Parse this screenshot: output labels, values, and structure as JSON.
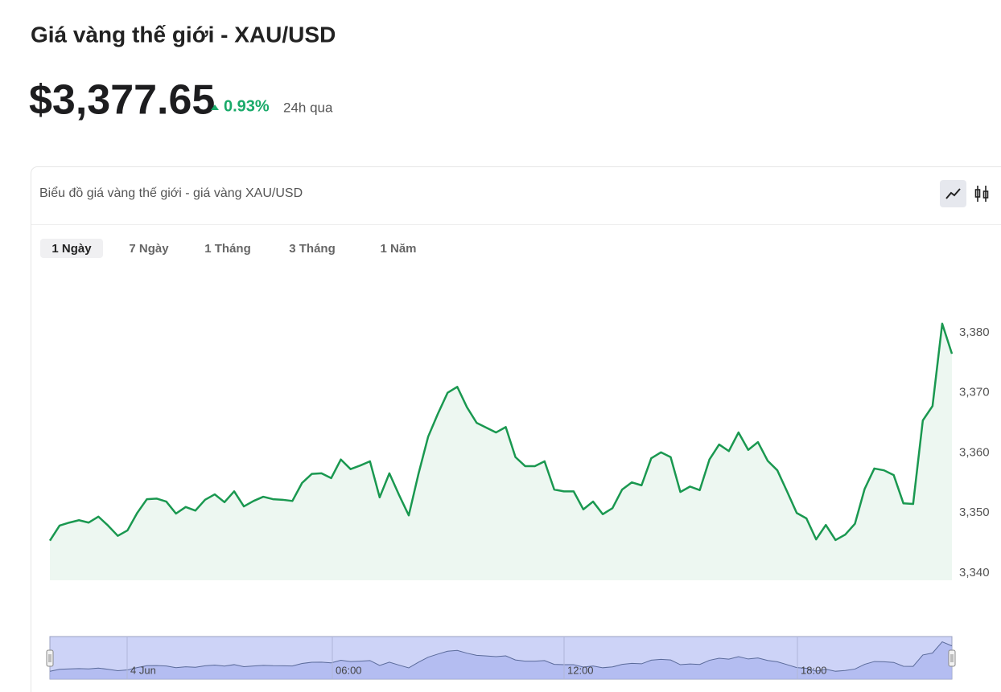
{
  "header": {
    "title": "Giá vàng thế giới - XAU/USD",
    "price": "$3,377.65",
    "change": "0.93%",
    "change_period": "24h qua"
  },
  "card": {
    "title": "Biểu đồ giá vàng thế giới - giá vàng XAU/USD",
    "tabs": [
      "1 Ngày",
      "7 Ngày",
      "1 Tháng",
      "3 Tháng",
      "1 Năm"
    ],
    "active_tab": 0
  },
  "chart_data": {
    "type": "area",
    "color": "#1a9850",
    "values": [
      3345.4,
      3347.9,
      3348.4,
      3348.8,
      3348.4,
      3349.4,
      3347.9,
      3346.2,
      3347.1,
      3350.0,
      3352.3,
      3352.4,
      3351.9,
      3349.9,
      3351.0,
      3350.4,
      3352.2,
      3353.1,
      3351.8,
      3353.6,
      3351.1,
      3352.0,
      3352.7,
      3352.3,
      3352.2,
      3352.0,
      3355.0,
      3356.5,
      3356.6,
      3355.8,
      3358.9,
      3357.3,
      3357.9,
      3358.6,
      3352.6,
      3356.6,
      3353.0,
      3349.6,
      3356.5,
      3362.7,
      3366.5,
      3370.0,
      3371.0,
      3367.6,
      3365.0,
      3364.2,
      3363.4,
      3364.3,
      3359.3,
      3357.8,
      3357.8,
      3358.6,
      3353.9,
      3353.6,
      3353.6,
      3350.6,
      3351.9,
      3349.8,
      3350.8,
      3353.9,
      3355.1,
      3354.6,
      3359.1,
      3360.1,
      3359.3,
      3353.5,
      3354.4,
      3353.8,
      3358.9,
      3361.4,
      3360.3,
      3363.4,
      3360.5,
      3361.8,
      3358.7,
      3357.1,
      3353.6,
      3350.0,
      3349.1,
      3345.6,
      3348.0,
      3345.5,
      3346.4,
      3348.2,
      3354.0,
      3357.4,
      3357.1,
      3356.3,
      3351.6,
      3351.5,
      3365.4,
      3367.8,
      3381.5,
      3376.5
    ],
    "ylim": [
      3338.8,
      3385
    ],
    "yticks": [
      {
        "value": 3340,
        "label": "3,340"
      },
      {
        "value": 3350,
        "label": "3,350"
      },
      {
        "value": 3360,
        "label": "3,360"
      },
      {
        "value": 3370,
        "label": "3,370"
      },
      {
        "value": 3380,
        "label": "3,380"
      }
    ]
  },
  "navigator": {
    "labels": [
      "4 Jun",
      "06:00",
      "12:00",
      "18:00"
    ]
  }
}
